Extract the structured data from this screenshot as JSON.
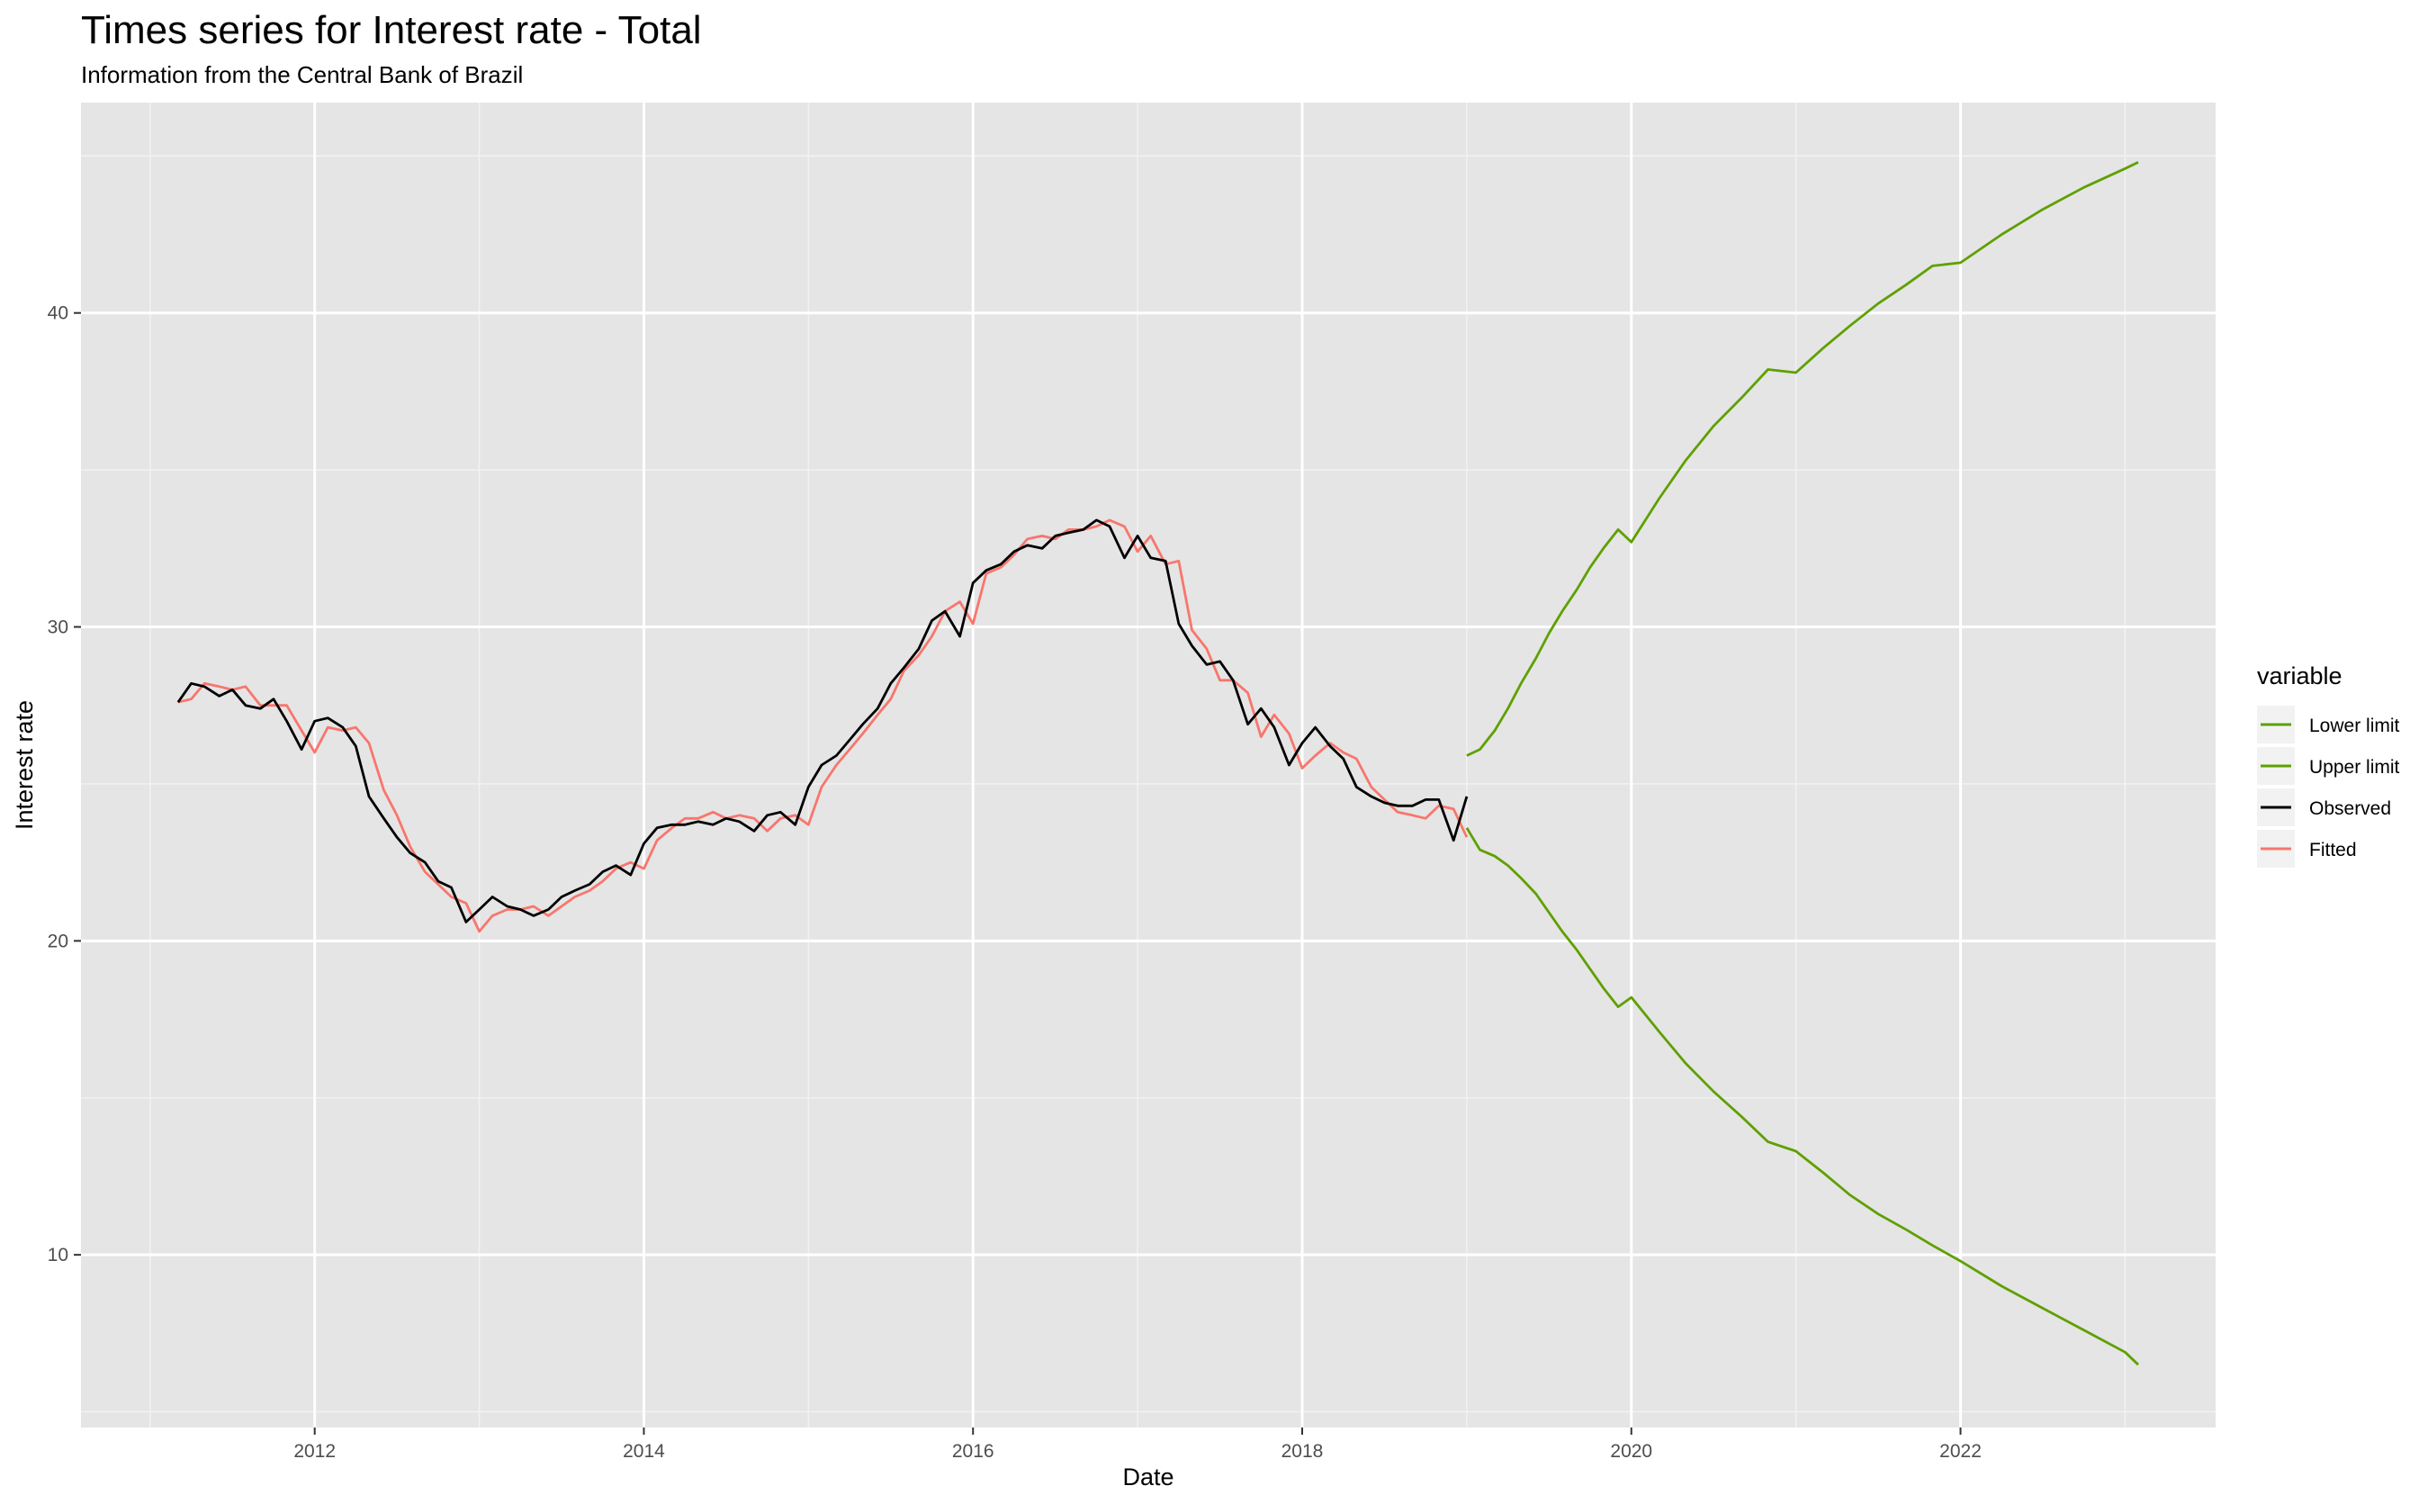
{
  "chart_data": {
    "type": "line",
    "title": "Times series for Interest rate - Total",
    "subtitle": "Information from the Central Bank of Brazil",
    "xlabel": "Date",
    "ylabel": "Interest rate",
    "x_ticks": [
      "2012",
      "2014",
      "2016",
      "2018",
      "2020",
      "2022"
    ],
    "y_ticks": [
      "10",
      "20",
      "30",
      "40"
    ],
    "xlim": [
      2010.58,
      2023.55
    ],
    "ylim": [
      4.5,
      46.7
    ],
    "grid": true,
    "panel_background": "#e5e5e5",
    "legend": {
      "title": "variable",
      "placement": "right",
      "entries": [
        "Lower limit",
        "Upper limit",
        "Observed",
        "Fitted"
      ]
    },
    "series": [
      {
        "name": "Lower limit",
        "color": "#5fa000",
        "x": [
          2019.0,
          2019.08,
          2019.17,
          2019.25,
          2019.33,
          2019.42,
          2019.5,
          2019.58,
          2019.67,
          2019.75,
          2019.83,
          2019.92,
          2020.0,
          2020.17,
          2020.33,
          2020.5,
          2020.67,
          2020.83,
          2021.0,
          2021.17,
          2021.33,
          2021.5,
          2021.67,
          2021.83,
          2022.0,
          2022.25,
          2022.5,
          2022.75,
          2023.0,
          2023.08
        ],
        "y": [
          23.6,
          22.9,
          22.7,
          22.4,
          22.0,
          21.5,
          20.9,
          20.3,
          19.7,
          19.1,
          18.5,
          17.9,
          18.2,
          17.1,
          16.1,
          15.2,
          14.4,
          13.6,
          13.3,
          12.6,
          11.9,
          11.3,
          10.8,
          10.3,
          9.8,
          9.0,
          8.3,
          7.6,
          6.9,
          6.5
        ]
      },
      {
        "name": "Upper limit",
        "color": "#5fa000",
        "x": [
          2019.0,
          2019.08,
          2019.17,
          2019.25,
          2019.33,
          2019.42,
          2019.5,
          2019.58,
          2019.67,
          2019.75,
          2019.83,
          2019.92,
          2020.0,
          2020.17,
          2020.33,
          2020.5,
          2020.67,
          2020.83,
          2021.0,
          2021.17,
          2021.33,
          2021.5,
          2021.67,
          2021.83,
          2022.0,
          2022.25,
          2022.5,
          2022.75,
          2023.0,
          2023.08
        ],
        "y": [
          25.9,
          26.1,
          26.7,
          27.4,
          28.2,
          29.0,
          29.8,
          30.5,
          31.2,
          31.9,
          32.5,
          33.1,
          32.7,
          34.1,
          35.3,
          36.4,
          37.3,
          38.2,
          38.1,
          38.9,
          39.6,
          40.3,
          40.9,
          41.5,
          41.6,
          42.5,
          43.3,
          44.0,
          44.6,
          44.8
        ]
      },
      {
        "name": "Observed",
        "color": "#000000",
        "x": [
          2011.17,
          2011.25,
          2011.33,
          2011.42,
          2011.5,
          2011.58,
          2011.67,
          2011.75,
          2011.83,
          2011.92,
          2012.0,
          2012.08,
          2012.17,
          2012.25,
          2012.33,
          2012.42,
          2012.5,
          2012.58,
          2012.67,
          2012.75,
          2012.83,
          2012.92,
          2013.0,
          2013.08,
          2013.17,
          2013.25,
          2013.33,
          2013.42,
          2013.5,
          2013.58,
          2013.67,
          2013.75,
          2013.83,
          2013.92,
          2014.0,
          2014.08,
          2014.17,
          2014.25,
          2014.33,
          2014.42,
          2014.5,
          2014.58,
          2014.67,
          2014.75,
          2014.83,
          2014.92,
          2015.0,
          2015.08,
          2015.17,
          2015.25,
          2015.33,
          2015.42,
          2015.5,
          2015.58,
          2015.67,
          2015.75,
          2015.83,
          2015.92,
          2016.0,
          2016.08,
          2016.17,
          2016.25,
          2016.33,
          2016.42,
          2016.5,
          2016.58,
          2016.67,
          2016.75,
          2016.83,
          2016.92,
          2017.0,
          2017.08,
          2017.17,
          2017.25,
          2017.33,
          2017.42,
          2017.5,
          2017.58,
          2017.67,
          2017.75,
          2017.83,
          2017.92,
          2018.0,
          2018.08,
          2018.17,
          2018.25,
          2018.33,
          2018.42,
          2018.5,
          2018.58,
          2018.67,
          2018.75,
          2018.83,
          2018.92,
          2019.0
        ],
        "y": [
          27.6,
          28.2,
          28.1,
          27.8,
          28.0,
          27.5,
          27.4,
          27.7,
          27.0,
          26.1,
          27.0,
          27.1,
          26.8,
          26.2,
          24.6,
          23.9,
          23.3,
          22.8,
          22.5,
          21.9,
          21.7,
          20.6,
          21.0,
          21.4,
          21.1,
          21.0,
          20.8,
          21.0,
          21.4,
          21.6,
          21.8,
          22.2,
          22.4,
          22.1,
          23.1,
          23.6,
          23.7,
          23.7,
          23.8,
          23.7,
          23.9,
          23.8,
          23.5,
          24.0,
          24.1,
          23.7,
          24.9,
          25.6,
          25.9,
          26.4,
          26.9,
          27.4,
          28.2,
          28.7,
          29.3,
          30.2,
          30.5,
          29.7,
          31.4,
          31.8,
          32.0,
          32.4,
          32.6,
          32.5,
          32.9,
          33.0,
          33.1,
          33.4,
          33.2,
          32.2,
          32.9,
          32.2,
          32.1,
          30.1,
          29.4,
          28.8,
          28.9,
          28.3,
          26.9,
          27.4,
          26.8,
          25.6,
          26.3,
          26.8,
          26.2,
          25.8,
          24.9,
          24.6,
          24.4,
          24.3,
          24.3,
          24.5,
          24.5,
          23.2,
          24.6
        ]
      },
      {
        "name": "Fitted",
        "color": "#f8766d",
        "x": [
          2011.17,
          2011.25,
          2011.33,
          2011.42,
          2011.5,
          2011.58,
          2011.67,
          2011.75,
          2011.83,
          2011.92,
          2012.0,
          2012.08,
          2012.17,
          2012.25,
          2012.33,
          2012.42,
          2012.5,
          2012.58,
          2012.67,
          2012.75,
          2012.83,
          2012.92,
          2013.0,
          2013.08,
          2013.17,
          2013.25,
          2013.33,
          2013.42,
          2013.5,
          2013.58,
          2013.67,
          2013.75,
          2013.83,
          2013.92,
          2014.0,
          2014.08,
          2014.17,
          2014.25,
          2014.33,
          2014.42,
          2014.5,
          2014.58,
          2014.67,
          2014.75,
          2014.83,
          2014.92,
          2015.0,
          2015.08,
          2015.17,
          2015.25,
          2015.33,
          2015.42,
          2015.5,
          2015.58,
          2015.67,
          2015.75,
          2015.83,
          2015.92,
          2016.0,
          2016.08,
          2016.17,
          2016.25,
          2016.33,
          2016.42,
          2016.5,
          2016.58,
          2016.67,
          2016.75,
          2016.83,
          2016.92,
          2017.0,
          2017.08,
          2017.17,
          2017.25,
          2017.33,
          2017.42,
          2017.5,
          2017.58,
          2017.67,
          2017.75,
          2017.83,
          2017.92,
          2018.0,
          2018.08,
          2018.17,
          2018.25,
          2018.33,
          2018.42,
          2018.5,
          2018.58,
          2018.67,
          2018.75,
          2018.83,
          2018.92,
          2019.0
        ],
        "y": [
          27.6,
          27.7,
          28.2,
          28.1,
          28.0,
          28.1,
          27.5,
          27.5,
          27.5,
          26.7,
          26.0,
          26.8,
          26.7,
          26.8,
          26.3,
          24.8,
          24.0,
          23.0,
          22.2,
          21.8,
          21.4,
          21.2,
          20.3,
          20.8,
          21.0,
          21.0,
          21.1,
          20.8,
          21.1,
          21.4,
          21.6,
          21.9,
          22.3,
          22.5,
          22.3,
          23.2,
          23.6,
          23.9,
          23.9,
          24.1,
          23.9,
          24.0,
          23.9,
          23.5,
          23.9,
          24.0,
          23.7,
          24.9,
          25.6,
          26.1,
          26.6,
          27.2,
          27.7,
          28.6,
          29.1,
          29.7,
          30.5,
          30.8,
          30.1,
          31.7,
          31.9,
          32.3,
          32.8,
          32.9,
          32.8,
          33.1,
          33.1,
          33.2,
          33.4,
          33.2,
          32.4,
          32.9,
          32.0,
          32.1,
          29.9,
          29.3,
          28.3,
          28.3,
          27.9,
          26.5,
          27.2,
          26.6,
          25.5,
          25.9,
          26.3,
          26.0,
          25.8,
          24.9,
          24.5,
          24.1,
          24.0,
          23.9,
          24.3,
          24.2,
          23.3
        ]
      }
    ]
  }
}
